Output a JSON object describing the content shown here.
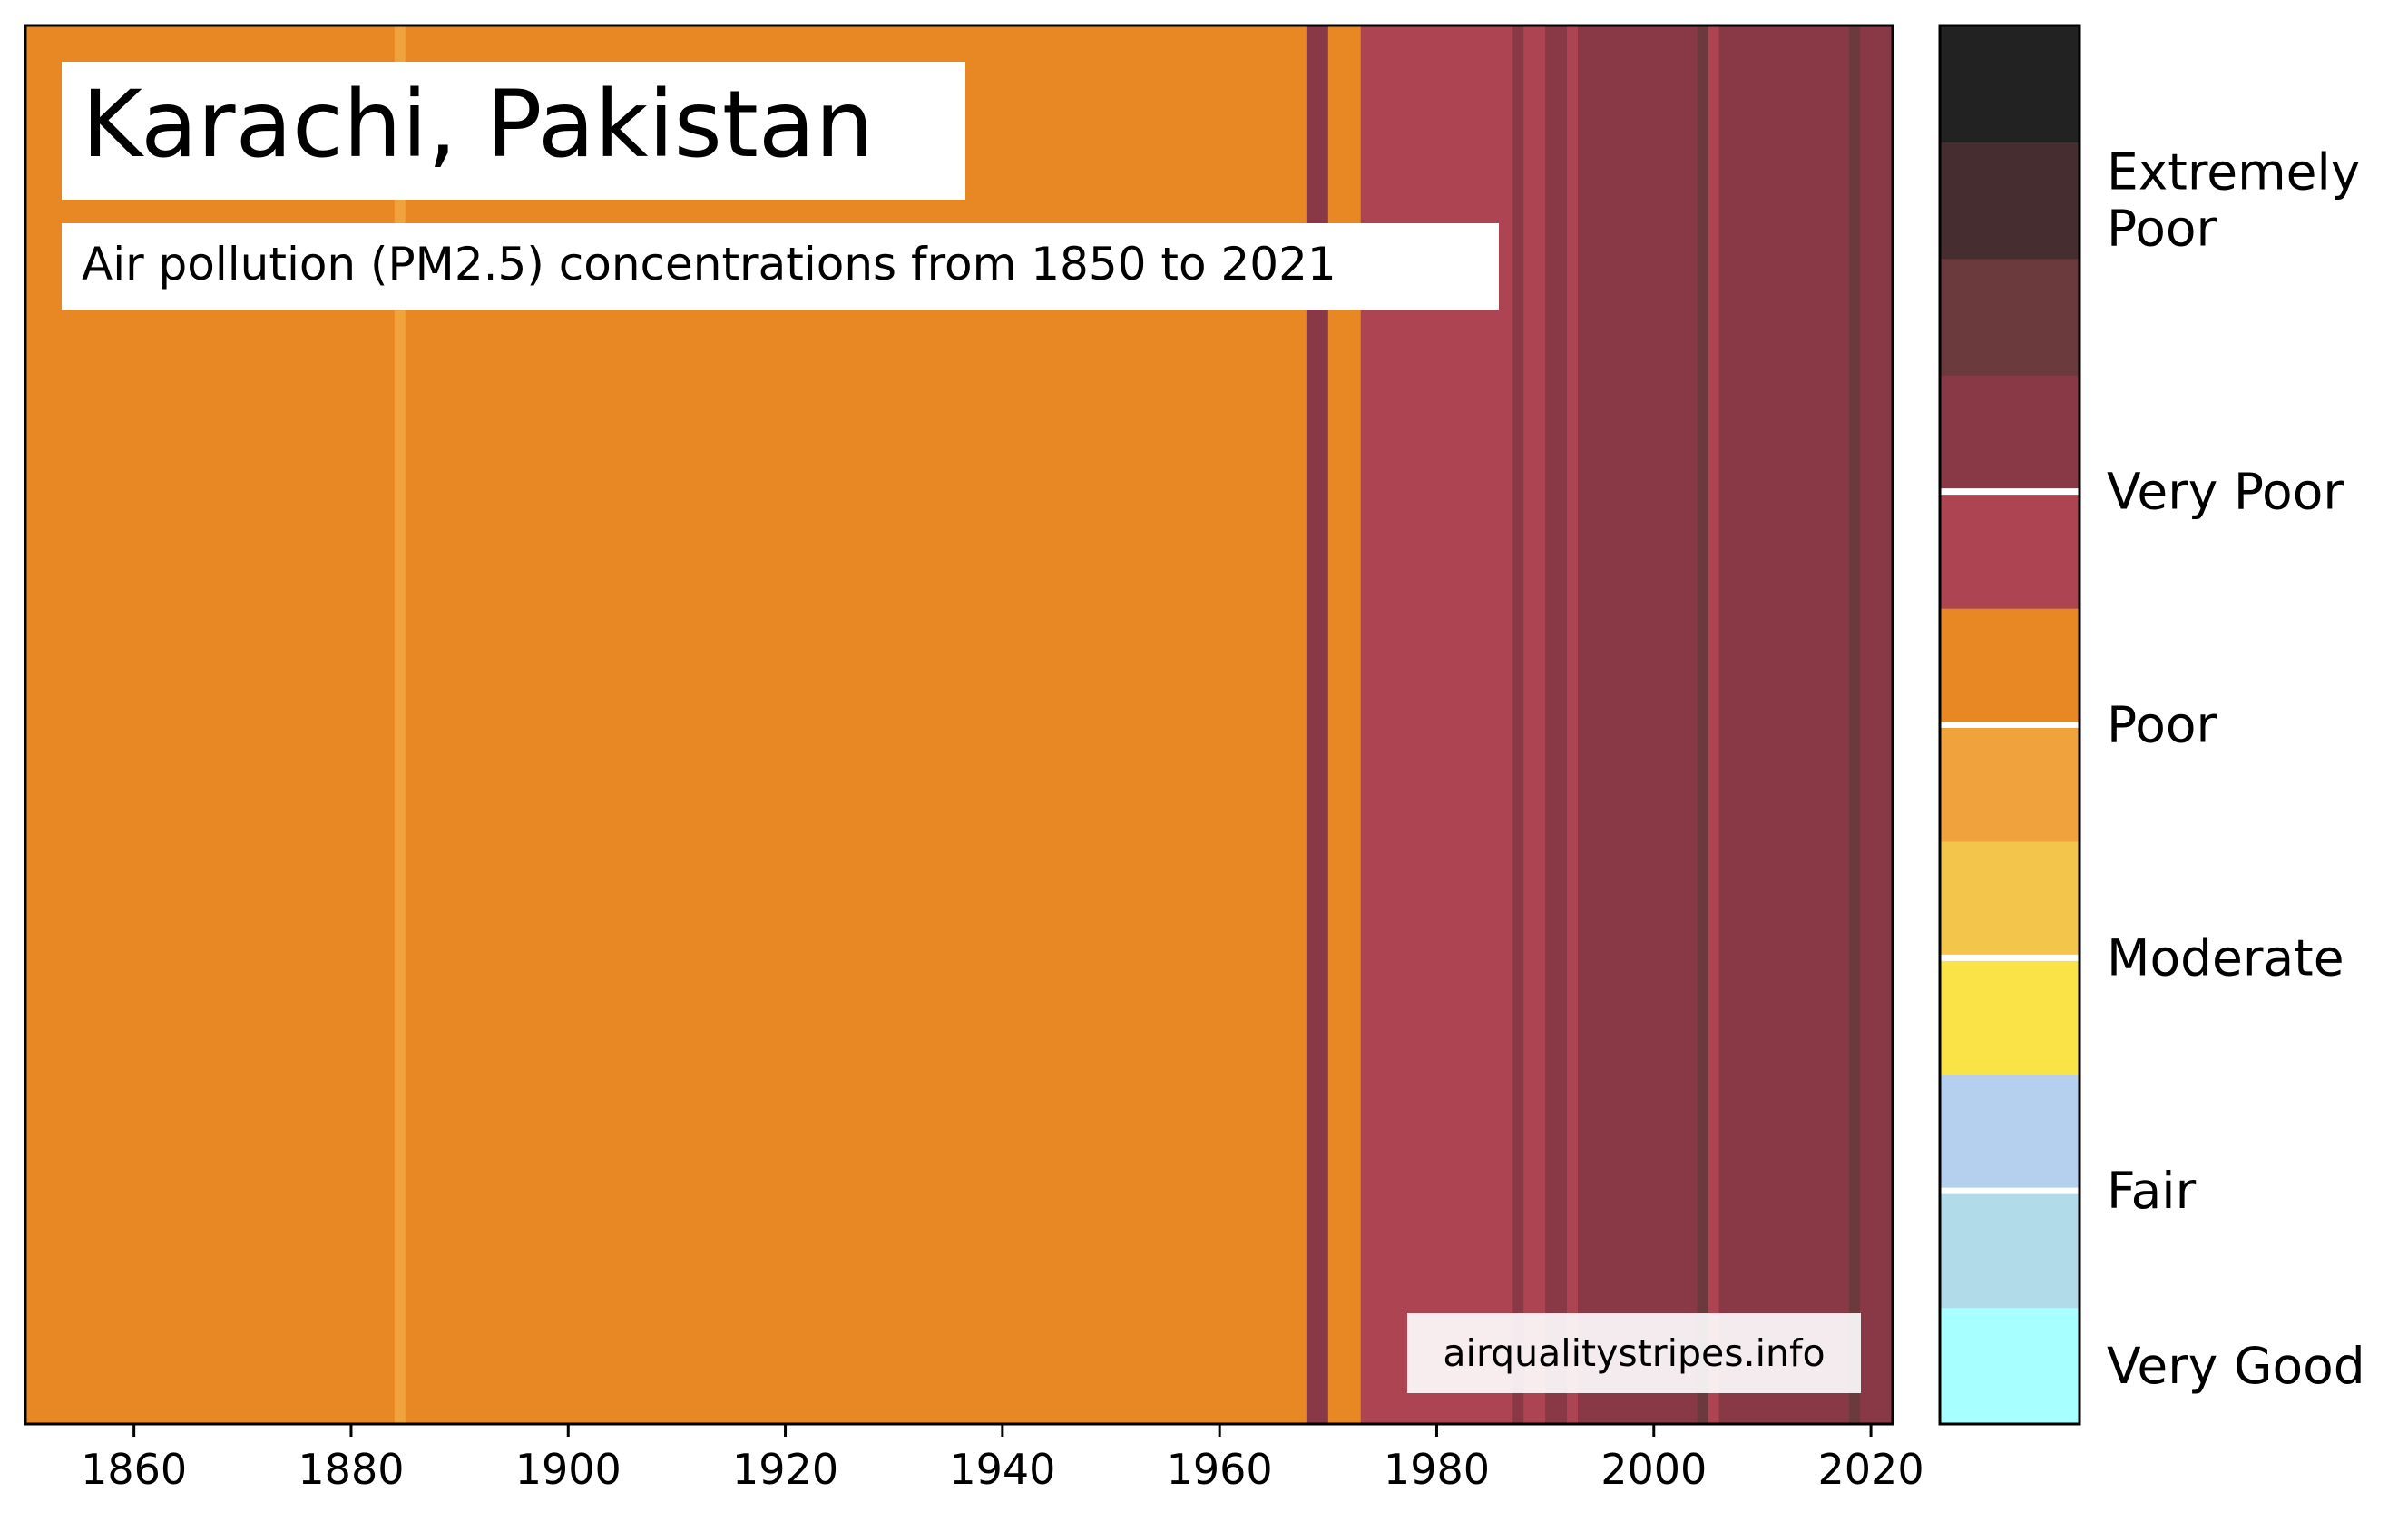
{
  "chart_data": {
    "type": "heatmap",
    "title": "Karachi, Pakistan",
    "subtitle": "Air pollution (PM2.5) concentrations from 1850 to 2021",
    "watermark": "airqualitystripes.info",
    "xlim": [
      1850,
      2022
    ],
    "x_ticks": [
      1860,
      1880,
      1900,
      1920,
      1940,
      1960,
      1980,
      2000,
      2020
    ],
    "grid": false,
    "stripes_note": "one stripe per year, colored by air quality category",
    "stripes": [
      {
        "start": 1850,
        "end": 1884,
        "category": "Poor (high)",
        "color": "#e88824"
      },
      {
        "start": 1884,
        "end": 1885,
        "category": "Poor (low)",
        "color": "#f0a23c"
      },
      {
        "start": 1885,
        "end": 1968,
        "category": "Poor (high)",
        "color": "#e88824"
      },
      {
        "start": 1968,
        "end": 1970,
        "category": "Very Poor (high)",
        "color": "#883945"
      },
      {
        "start": 1970,
        "end": 1973,
        "category": "Poor (high)",
        "color": "#e88824"
      },
      {
        "start": 1973,
        "end": 1987,
        "category": "Very Poor (low)",
        "color": "#ad4451"
      },
      {
        "start": 1987,
        "end": 1988,
        "category": "Very Poor (high)",
        "color": "#883945"
      },
      {
        "start": 1988,
        "end": 1990,
        "category": "Very Poor (low)",
        "color": "#ad4451"
      },
      {
        "start": 1990,
        "end": 1992,
        "category": "Very Poor (high)",
        "color": "#883945"
      },
      {
        "start": 1992,
        "end": 1993,
        "category": "Very Poor (low)",
        "color": "#ad4451"
      },
      {
        "start": 1993,
        "end": 2004,
        "category": "Very Poor (high)",
        "color": "#883945"
      },
      {
        "start": 2004,
        "end": 2005,
        "category": "Extremely Poor (low)",
        "color": "#6b3a3d"
      },
      {
        "start": 2005,
        "end": 2006,
        "category": "Very Poor (low)",
        "color": "#ad4451"
      },
      {
        "start": 2006,
        "end": 2018,
        "category": "Very Poor (high)",
        "color": "#883945"
      },
      {
        "start": 2018,
        "end": 2019,
        "category": "Extremely Poor (low)",
        "color": "#6b3a3d"
      },
      {
        "start": 2019,
        "end": 2022,
        "category": "Very Poor (high)",
        "color": "#883945"
      }
    ],
    "legend": {
      "placement": "right",
      "segments": [
        {
          "color": "#a8ffff"
        },
        {
          "color": "#b2dbea"
        },
        {
          "color": "#b4d0ee"
        },
        {
          "color": "#f9e346"
        },
        {
          "color": "#f3c54a"
        },
        {
          "color": "#f0a23c"
        },
        {
          "color": "#e88824"
        },
        {
          "color": "#ad4451"
        },
        {
          "color": "#883945"
        },
        {
          "color": "#6b3a3d"
        },
        {
          "color": "#452d30"
        },
        {
          "color": "#222222"
        }
      ],
      "category_boundaries_after_segment": [
        1,
        3,
        5,
        7
      ],
      "labels": [
        {
          "text": "Very Good",
          "segments": [
            0,
            0
          ]
        },
        {
          "text": "Fair",
          "segments": [
            1,
            2
          ]
        },
        {
          "text": "Moderate",
          "segments": [
            3,
            4
          ]
        },
        {
          "text": "Poor",
          "segments": [
            5,
            6
          ]
        },
        {
          "text": "Very Poor",
          "segments": [
            7,
            8
          ]
        },
        {
          "text": "Extremely Poor",
          "lines": [
            "Extremely",
            "Poor"
          ],
          "segments": [
            9,
            11
          ]
        }
      ]
    }
  }
}
